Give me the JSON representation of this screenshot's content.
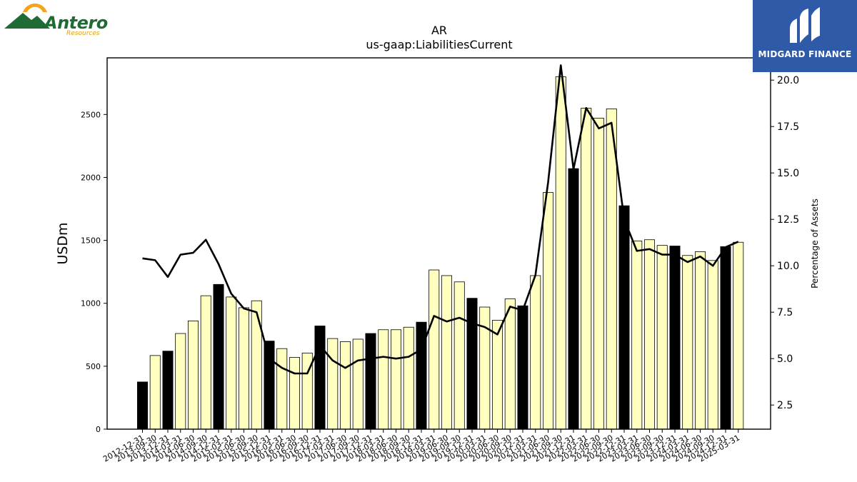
{
  "logos": {
    "left": {
      "name": "Antero",
      "tagline": "Resources",
      "colors": {
        "green": "#1e6b33",
        "orange": "#f2a51a"
      }
    },
    "right": {
      "name": "MIDGARD FINANCE",
      "colors": {
        "background": "#2f5aa8",
        "mark": "#ffffff"
      }
    }
  },
  "chart_data": {
    "type": "bar",
    "title": "AR",
    "subtitle": "us-gaap:LiabilitiesCurrent",
    "ylabel": "USDm",
    "y2label": "Percentage of Assets",
    "ylim": [
      0,
      2950
    ],
    "y2lim": [
      1.2,
      21.2
    ],
    "yticks": [
      0,
      500,
      1000,
      1500,
      2000,
      2500
    ],
    "y2ticks": [
      "2.5",
      "5.0",
      "7.5",
      "10.0",
      "12.5",
      "15.0",
      "17.5",
      "20.0"
    ],
    "grid": false,
    "colors": {
      "bar_default": "#ffffc0",
      "bar_highlight": "#000000",
      "line": "#000000",
      "axis": "#000000"
    },
    "categories": [
      "2012-12-31",
      "2013-09-30",
      "2013-12-31",
      "2014-03-31",
      "2014-06-30",
      "2014-09-30",
      "2014-12-31",
      "2015-03-31",
      "2015-06-30",
      "2015-09-30",
      "2015-12-31",
      "2016-03-31",
      "2016-06-30",
      "2016-09-30",
      "2016-12-31",
      "2017-03-31",
      "2017-06-30",
      "2017-09-30",
      "2017-12-31",
      "2018-03-31",
      "2018-06-30",
      "2018-09-30",
      "2018-12-31",
      "2019-03-31",
      "2019-06-30",
      "2019-09-30",
      "2019-12-31",
      "2020-03-31",
      "2020-06-30",
      "2020-09-30",
      "2020-12-31",
      "2021-03-31",
      "2021-06-30",
      "2021-09-30",
      "2021-12-31",
      "2022-03-31",
      "2022-06-30",
      "2022-09-30",
      "2022-12-31",
      "2023-03-31",
      "2023-06-30",
      "2023-09-30",
      "2023-12-31",
      "2024-03-31",
      "2024-06-30",
      "2024-09-30",
      "2024-12-31",
      "2025-03-31"
    ],
    "values": [
      375,
      585,
      620,
      760,
      860,
      1060,
      1150,
      1050,
      965,
      1020,
      700,
      640,
      570,
      605,
      820,
      720,
      695,
      715,
      760,
      790,
      790,
      810,
      850,
      1265,
      1220,
      1170,
      1040,
      970,
      865,
      1035,
      980,
      1220,
      1880,
      2800,
      2070,
      2550,
      2470,
      2545,
      1775,
      1495,
      1505,
      1460,
      1455,
      1380,
      1410,
      1340,
      1450,
      1485
    ],
    "highlight": [
      true,
      false,
      true,
      false,
      false,
      false,
      true,
      false,
      false,
      false,
      true,
      false,
      false,
      false,
      true,
      false,
      false,
      false,
      true,
      false,
      false,
      false,
      true,
      false,
      false,
      false,
      true,
      false,
      false,
      false,
      true,
      false,
      false,
      false,
      true,
      false,
      false,
      false,
      true,
      false,
      false,
      false,
      true,
      false,
      false,
      false,
      true,
      false
    ],
    "series": [
      {
        "type": "line",
        "values": [
          10.4,
          10.3,
          9.4,
          10.6,
          10.7,
          11.4,
          10.1,
          8.5,
          7.7,
          7.5,
          5.0,
          4.5,
          4.2,
          4.2,
          5.7,
          4.9,
          4.5,
          4.9,
          5.0,
          5.1,
          5.0,
          5.1,
          5.5,
          7.3,
          7.0,
          7.2,
          6.9,
          6.7,
          6.3,
          7.8,
          7.6,
          9.5,
          14.5,
          20.8,
          15.2,
          18.5,
          17.4,
          17.7,
          12.5,
          10.8,
          10.9,
          10.6,
          10.6,
          10.2,
          10.5,
          10.0,
          11.0,
          11.3
        ]
      }
    ]
  }
}
